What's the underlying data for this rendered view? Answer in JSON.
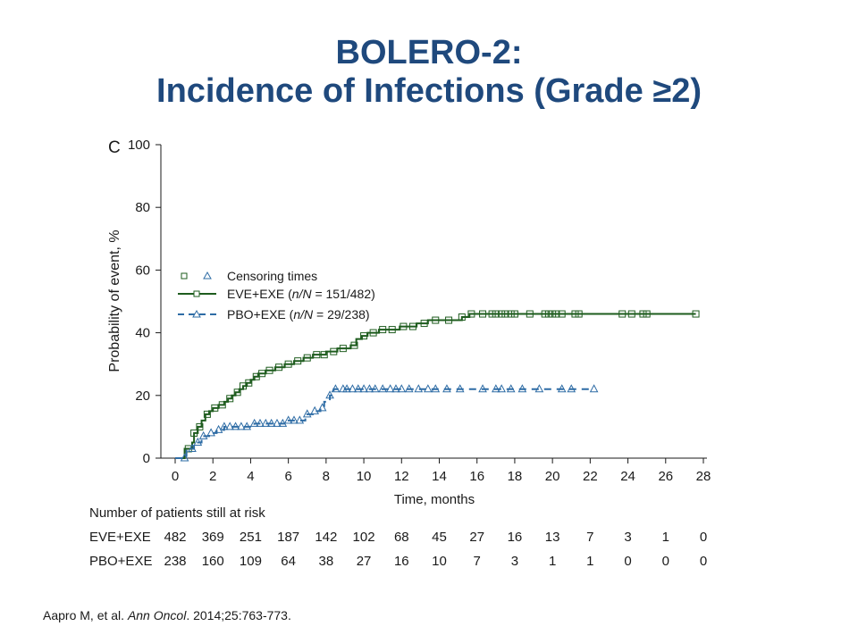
{
  "slide": {
    "title_line1": "BOLERO-2:",
    "title_line2": "Incidence of Infections (Grade ≥2)",
    "citation": {
      "authors": "Aapro M, et al. ",
      "journal": "Ann Oncol",
      "details": ". 2014;25:763-773."
    }
  },
  "chart_data": {
    "type": "line",
    "panel_label": "C",
    "xlabel": "Time, months",
    "ylabel": "Probability of event, %",
    "xlim": [
      0,
      28
    ],
    "ylim": [
      0,
      100
    ],
    "x_ticks": [
      0,
      2,
      4,
      6,
      8,
      10,
      12,
      14,
      16,
      18,
      20,
      22,
      24,
      26,
      28
    ],
    "y_ticks": [
      0,
      20,
      40,
      60,
      80,
      100
    ],
    "legend": {
      "placement": "middle-left",
      "censor_label": "Censoring times",
      "entries": [
        {
          "prefix": "EVE+EXE (",
          "italic": "n/N",
          "suffix": " = 151/482)"
        },
        {
          "prefix": "PBO+EXE (",
          "italic": "n/N",
          "suffix": " = 29/238)"
        }
      ]
    },
    "series": [
      {
        "name": "EVE+EXE",
        "color": "#1e5c1e",
        "line_style": "solid",
        "marker": "square",
        "steps": [
          [
            0,
            0
          ],
          [
            0.5,
            3
          ],
          [
            0.9,
            5
          ],
          [
            1.0,
            8
          ],
          [
            1.2,
            10
          ],
          [
            1.4,
            12
          ],
          [
            1.6,
            14
          ],
          [
            1.8,
            15
          ],
          [
            2.0,
            16
          ],
          [
            2.3,
            17
          ],
          [
            2.6,
            18
          ],
          [
            2.8,
            19
          ],
          [
            3.0,
            20
          ],
          [
            3.2,
            21
          ],
          [
            3.4,
            22
          ],
          [
            3.6,
            23
          ],
          [
            3.8,
            24
          ],
          [
            4.0,
            25
          ],
          [
            4.2,
            26
          ],
          [
            4.4,
            27
          ],
          [
            4.8,
            28
          ],
          [
            5.3,
            29
          ],
          [
            5.8,
            30
          ],
          [
            6.3,
            31
          ],
          [
            6.8,
            32
          ],
          [
            7.3,
            33
          ],
          [
            8.0,
            34
          ],
          [
            8.6,
            35
          ],
          [
            9.3,
            36
          ],
          [
            9.6,
            38
          ],
          [
            9.9,
            39
          ],
          [
            10.2,
            40
          ],
          [
            10.8,
            41
          ],
          [
            11.9,
            42
          ],
          [
            12.8,
            43
          ],
          [
            13.4,
            44
          ],
          [
            15.2,
            45
          ],
          [
            15.6,
            46
          ],
          [
            27.6,
            46
          ]
        ],
        "censor_times": [
          0.7,
          1.0,
          1.3,
          1.7,
          2.1,
          2.5,
          2.9,
          3.3,
          3.6,
          3.9,
          4.3,
          4.6,
          5.0,
          5.5,
          6.0,
          6.5,
          7.0,
          7.5,
          7.9,
          8.4,
          8.9,
          9.5,
          10.0,
          10.5,
          11.0,
          11.5,
          12.1,
          12.6,
          13.2,
          13.8,
          14.5,
          15.2,
          15.7,
          16.3,
          16.8,
          17.0,
          17.3,
          17.5,
          17.8,
          18.0,
          18.8,
          19.6,
          19.8,
          20.0,
          20.2,
          20.5,
          21.2,
          21.4,
          23.7,
          24.2,
          24.8,
          25.0,
          27.6
        ],
        "final_value": 46
      },
      {
        "name": "PBO+EXE",
        "color": "#2e6ca5",
        "line_style": "dashed",
        "marker": "triangle",
        "steps": [
          [
            0,
            0
          ],
          [
            0.6,
            3
          ],
          [
            1.0,
            5
          ],
          [
            1.4,
            7
          ],
          [
            1.8,
            8
          ],
          [
            2.2,
            9
          ],
          [
            2.6,
            10
          ],
          [
            4.0,
            10
          ],
          [
            4.2,
            11
          ],
          [
            5.7,
            11
          ],
          [
            5.8,
            12
          ],
          [
            6.8,
            12
          ],
          [
            6.9,
            14
          ],
          [
            7.3,
            15
          ],
          [
            7.7,
            16
          ],
          [
            7.9,
            18
          ],
          [
            8.2,
            20
          ],
          [
            8.4,
            22
          ],
          [
            22.2,
            22
          ]
        ],
        "censor_times": [
          0.5,
          0.9,
          1.2,
          1.5,
          1.9,
          2.3,
          2.6,
          2.9,
          3.2,
          3.5,
          3.8,
          4.2,
          4.5,
          4.8,
          5.1,
          5.4,
          5.7,
          6.0,
          6.3,
          6.6,
          7.0,
          7.4,
          7.8,
          8.2,
          8.5,
          8.9,
          9.1,
          9.4,
          9.7,
          10.0,
          10.3,
          10.6,
          11.0,
          11.4,
          11.7,
          12.0,
          12.4,
          12.9,
          13.4,
          13.8,
          14.4,
          15.1,
          16.3,
          17.0,
          17.3,
          17.8,
          18.4,
          19.3,
          20.5,
          21.0,
          22.2
        ],
        "final_value": 22
      }
    ],
    "risk_table": {
      "header": "Number of patients still at risk",
      "time_points": [
        0,
        2,
        4,
        6,
        8,
        10,
        12,
        14,
        16,
        18,
        20,
        22,
        24,
        26,
        28
      ],
      "rows": [
        {
          "label": "EVE+EXE",
          "values": [
            "482",
            "369",
            "251",
            "187",
            "142",
            "102",
            "68",
            "45",
            "27",
            "16",
            "13",
            "7",
            "3",
            "1",
            "0"
          ]
        },
        {
          "label": "PBO+EXE",
          "values": [
            "238",
            "160",
            "109",
            "64",
            "38",
            "27",
            "16",
            "10",
            "7",
            "3",
            "1",
            "1",
            "0",
            "0",
            "0"
          ]
        }
      ]
    }
  }
}
